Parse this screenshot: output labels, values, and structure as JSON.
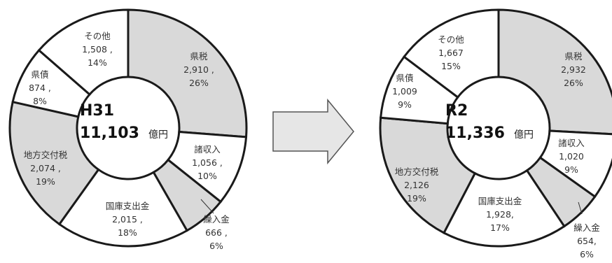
{
  "chart_data": [
    {
      "type": "pie",
      "center": {
        "title": "H31",
        "total": "11,103",
        "unit": "億円"
      },
      "slices": [
        {
          "label": "県税",
          "value": 2910,
          "value_text": "2,910 ,",
          "percent": "26%",
          "shaded": true
        },
        {
          "label": "諸収入",
          "value": 1056,
          "value_text": "1,056 ,",
          "percent": "10%",
          "shaded": false
        },
        {
          "label": "繰入金",
          "value": 666,
          "value_text": "666 ,",
          "percent": "6%",
          "shaded": true
        },
        {
          "label": "国庫支出金",
          "value": 2015,
          "value_text": "2,015 ,",
          "percent": "18%",
          "shaded": false
        },
        {
          "label": "地方交付税",
          "value": 2074,
          "value_text": "2,074 ,",
          "percent": "19%",
          "shaded": true
        },
        {
          "label": "県債",
          "value": 874,
          "value_text": "874 ,",
          "percent": "8%",
          "shaded": false
        },
        {
          "label": "その他",
          "value": 1508,
          "value_text": "1,508 ,",
          "percent": "14%",
          "shaded": false
        }
      ]
    },
    {
      "type": "pie",
      "center": {
        "title": "R2",
        "total": "11,336",
        "unit": "億円"
      },
      "slices": [
        {
          "label": "県税",
          "value": 2932,
          "value_text": "2,932",
          "percent": "26%",
          "shaded": true
        },
        {
          "label": "諸収入",
          "value": 1020,
          "value_text": "1,020",
          "percent": "9%",
          "shaded": false
        },
        {
          "label": "繰入金",
          "value": 654,
          "value_text": "654,",
          "percent": "6%",
          "shaded": true
        },
        {
          "label": "国庫支出金",
          "value": 1928,
          "value_text": "1,928,",
          "percent": "17%",
          "shaded": false
        },
        {
          "label": "地方交付税",
          "value": 2126,
          "value_text": "2,126",
          "percent": "19%",
          "shaded": true
        },
        {
          "label": "県債",
          "value": 1009,
          "value_text": "1,009",
          "percent": "9%",
          "shaded": false
        },
        {
          "label": "その他",
          "value": 1667,
          "value_text": "1,667",
          "percent": "15%",
          "shaded": false
        }
      ]
    }
  ],
  "colors": {
    "shaded": "#d9d9d9",
    "plain": "#ffffff",
    "stroke": "#1a1a1a",
    "arrow_fill": "#e6e6e6"
  },
  "arrow_icon": "right-arrow-icon"
}
